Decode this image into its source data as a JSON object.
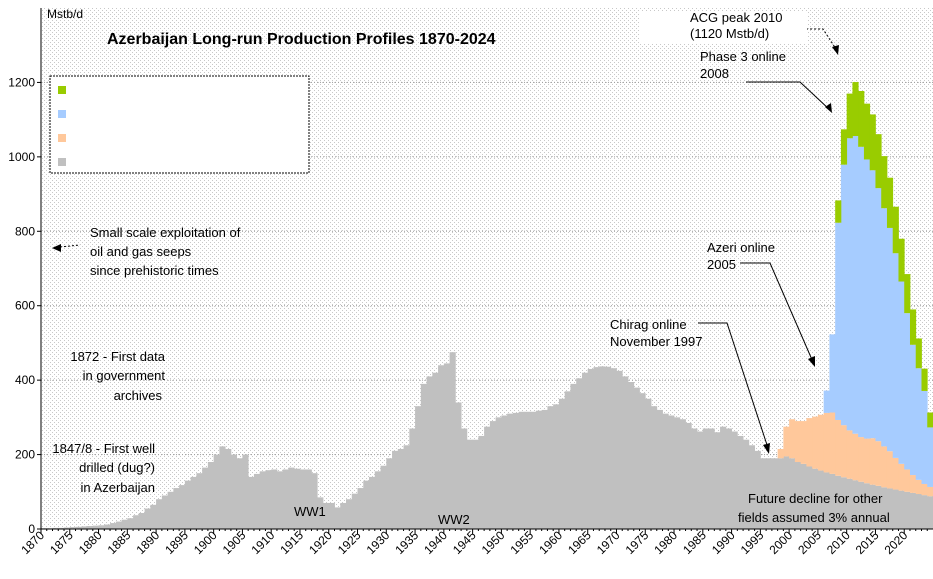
{
  "chart_data": {
    "type": "area",
    "title": "Azerbaijan Long-run Production Profiles 1870-2024",
    "ylabel": "Mstb/d",
    "xlim": [
      1870,
      2025
    ],
    "ylim": [
      0,
      1400
    ],
    "y_ticks": [
      0,
      200,
      400,
      600,
      800,
      1000,
      1200
    ],
    "x_ticks": [
      1870,
      1875,
      1880,
      1885,
      1890,
      1895,
      1900,
      1905,
      1910,
      1915,
      1920,
      1925,
      1930,
      1935,
      1940,
      1945,
      1950,
      1955,
      1960,
      1965,
      1970,
      1975,
      1980,
      1985,
      1990,
      1995,
      2000,
      2005,
      2010,
      2015,
      2020
    ],
    "grid": true,
    "legend": {
      "placement": "top-left",
      "entries": [
        "",
        "",
        "",
        ""
      ]
    },
    "series": [
      {
        "color": "#c0c0c0",
        "points": [
          [
            1870,
            2
          ],
          [
            1871,
            2
          ],
          [
            1872,
            3
          ],
          [
            1873,
            3
          ],
          [
            1874,
            4
          ],
          [
            1875,
            5
          ],
          [
            1876,
            6
          ],
          [
            1877,
            7
          ],
          [
            1878,
            8
          ],
          [
            1879,
            9
          ],
          [
            1880,
            10
          ],
          [
            1881,
            12
          ],
          [
            1882,
            16
          ],
          [
            1883,
            20
          ],
          [
            1884,
            25
          ],
          [
            1885,
            29
          ],
          [
            1886,
            37
          ],
          [
            1887,
            43
          ],
          [
            1888,
            55
          ],
          [
            1889,
            65
          ],
          [
            1890,
            80
          ],
          [
            1891,
            90
          ],
          [
            1892,
            100
          ],
          [
            1893,
            110
          ],
          [
            1894,
            118
          ],
          [
            1895,
            130
          ],
          [
            1896,
            140
          ],
          [
            1897,
            150
          ],
          [
            1898,
            165
          ],
          [
            1899,
            180
          ],
          [
            1900,
            200
          ],
          [
            1901,
            222
          ],
          [
            1902,
            215
          ],
          [
            1903,
            200
          ],
          [
            1904,
            190
          ],
          [
            1905,
            200
          ],
          [
            1906,
            140
          ],
          [
            1907,
            148
          ],
          [
            1908,
            155
          ],
          [
            1909,
            158
          ],
          [
            1910,
            160
          ],
          [
            1911,
            155
          ],
          [
            1912,
            160
          ],
          [
            1913,
            165
          ],
          [
            1914,
            162
          ],
          [
            1915,
            160
          ],
          [
            1916,
            160
          ],
          [
            1917,
            150
          ],
          [
            1918,
            85
          ],
          [
            1919,
            70
          ],
          [
            1920,
            70
          ],
          [
            1921,
            58
          ],
          [
            1922,
            70
          ],
          [
            1923,
            80
          ],
          [
            1924,
            95
          ],
          [
            1925,
            110
          ],
          [
            1926,
            130
          ],
          [
            1927,
            140
          ],
          [
            1928,
            155
          ],
          [
            1929,
            170
          ],
          [
            1930,
            190
          ],
          [
            1931,
            210
          ],
          [
            1932,
            215
          ],
          [
            1933,
            225
          ],
          [
            1934,
            270
          ],
          [
            1935,
            330
          ],
          [
            1936,
            390
          ],
          [
            1937,
            410
          ],
          [
            1938,
            420
          ],
          [
            1939,
            440
          ],
          [
            1940,
            445
          ],
          [
            1941,
            475
          ],
          [
            1942,
            340
          ],
          [
            1943,
            270
          ],
          [
            1944,
            240
          ],
          [
            1945,
            240
          ],
          [
            1946,
            250
          ],
          [
            1947,
            275
          ],
          [
            1948,
            290
          ],
          [
            1949,
            300
          ],
          [
            1950,
            305
          ],
          [
            1951,
            310
          ],
          [
            1952,
            312
          ],
          [
            1953,
            315
          ],
          [
            1954,
            315
          ],
          [
            1955,
            315
          ],
          [
            1956,
            318
          ],
          [
            1957,
            320
          ],
          [
            1958,
            330
          ],
          [
            1959,
            335
          ],
          [
            1960,
            350
          ],
          [
            1961,
            370
          ],
          [
            1962,
            390
          ],
          [
            1963,
            405
          ],
          [
            1964,
            420
          ],
          [
            1965,
            430
          ],
          [
            1966,
            435
          ],
          [
            1967,
            437
          ],
          [
            1968,
            436
          ],
          [
            1969,
            432
          ],
          [
            1970,
            425
          ],
          [
            1971,
            410
          ],
          [
            1972,
            395
          ],
          [
            1973,
            380
          ],
          [
            1974,
            365
          ],
          [
            1975,
            350
          ],
          [
            1976,
            330
          ],
          [
            1977,
            320
          ],
          [
            1978,
            310
          ],
          [
            1979,
            305
          ],
          [
            1980,
            300
          ],
          [
            1981,
            295
          ],
          [
            1982,
            285
          ],
          [
            1983,
            270
          ],
          [
            1984,
            262
          ],
          [
            1985,
            270
          ],
          [
            1986,
            270
          ],
          [
            1987,
            260
          ],
          [
            1988,
            275
          ],
          [
            1989,
            270
          ],
          [
            1990,
            262
          ],
          [
            1991,
            250
          ],
          [
            1992,
            240
          ],
          [
            1993,
            225
          ],
          [
            1994,
            210
          ],
          [
            1995,
            190
          ],
          [
            1996,
            190
          ],
          [
            1997,
            190
          ],
          [
            1998,
            190
          ],
          [
            1999,
            195
          ],
          [
            2000,
            190
          ],
          [
            2001,
            180
          ],
          [
            2002,
            175
          ],
          [
            2003,
            168
          ],
          [
            2004,
            162
          ],
          [
            2005,
            157
          ],
          [
            2006,
            152
          ],
          [
            2007,
            148
          ],
          [
            2008,
            143
          ],
          [
            2009,
            139
          ],
          [
            2010,
            135
          ],
          [
            2011,
            131
          ],
          [
            2012,
            127
          ],
          [
            2013,
            123
          ],
          [
            2014,
            119
          ],
          [
            2015,
            116
          ],
          [
            2016,
            112
          ],
          [
            2017,
            109
          ],
          [
            2018,
            106
          ],
          [
            2019,
            103
          ],
          [
            2020,
            100
          ],
          [
            2021,
            97
          ],
          [
            2022,
            94
          ],
          [
            2023,
            91
          ],
          [
            2024,
            88
          ]
        ]
      },
      {
        "color": "#ffc89b",
        "points": [
          [
            1997,
            0
          ],
          [
            1998,
            25
          ],
          [
            1999,
            80
          ],
          [
            2000,
            105
          ],
          [
            2001,
            110
          ],
          [
            2002,
            115
          ],
          [
            2003,
            130
          ],
          [
            2004,
            140
          ],
          [
            2005,
            150
          ],
          [
            2006,
            160
          ],
          [
            2007,
            165
          ],
          [
            2008,
            150
          ],
          [
            2009,
            140
          ],
          [
            2010,
            130
          ],
          [
            2011,
            125
          ],
          [
            2012,
            120
          ],
          [
            2013,
            120
          ],
          [
            2014,
            125
          ],
          [
            2015,
            120
          ],
          [
            2016,
            110
          ],
          [
            2017,
            100
          ],
          [
            2018,
            85
          ],
          [
            2019,
            72
          ],
          [
            2020,
            60
          ],
          [
            2021,
            48
          ],
          [
            2022,
            38
          ],
          [
            2023,
            30
          ],
          [
            2024,
            25
          ]
        ]
      },
      {
        "color": "#a6ccff",
        "points": [
          [
            2005,
            0
          ],
          [
            2006,
            60
          ],
          [
            2007,
            210
          ],
          [
            2008,
            530
          ],
          [
            2009,
            700
          ],
          [
            2010,
            785
          ],
          [
            2011,
            800
          ],
          [
            2012,
            780
          ],
          [
            2013,
            750
          ],
          [
            2014,
            720
          ],
          [
            2015,
            680
          ],
          [
            2016,
            640
          ],
          [
            2017,
            600
          ],
          [
            2018,
            550
          ],
          [
            2019,
            490
          ],
          [
            2020,
            420
          ],
          [
            2021,
            350
          ],
          [
            2022,
            300
          ],
          [
            2023,
            250
          ],
          [
            2024,
            160
          ]
        ]
      },
      {
        "color": "#99cc00",
        "points": [
          [
            2008,
            60
          ],
          [
            2009,
            95
          ],
          [
            2010,
            120
          ],
          [
            2011,
            145
          ],
          [
            2012,
            150
          ],
          [
            2013,
            150
          ],
          [
            2014,
            150
          ],
          [
            2015,
            145
          ],
          [
            2016,
            140
          ],
          [
            2017,
            135
          ],
          [
            2018,
            125
          ],
          [
            2019,
            115
          ],
          [
            2020,
            105
          ],
          [
            2021,
            95
          ],
          [
            2022,
            80
          ],
          [
            2023,
            60
          ],
          [
            2024,
            40
          ]
        ]
      }
    ],
    "annotations": [
      {
        "lines": [
          "ACG peak 2010",
          "(1120 Mstb/d)"
        ]
      },
      {
        "lines": [
          "Phase 3 online",
          "2008"
        ]
      },
      {
        "lines": [
          "Azeri online",
          "2005"
        ]
      },
      {
        "lines": [
          "Chirag online",
          "November 1997"
        ]
      },
      {
        "lines": [
          "Small scale exploitation of",
          "oil and gas seeps",
          "since prehistoric times"
        ]
      },
      {
        "lines": [
          "1872 - First data",
          "in government",
          "archives"
        ]
      },
      {
        "lines": [
          "1847/8 - First well",
          "drilled (dug?)",
          "in Azerbaijan"
        ]
      },
      {
        "lines": [
          "WW1"
        ]
      },
      {
        "lines": [
          "WW2"
        ]
      },
      {
        "lines": [
          "Future decline for other",
          "fields assumed 3% annual"
        ]
      }
    ]
  }
}
